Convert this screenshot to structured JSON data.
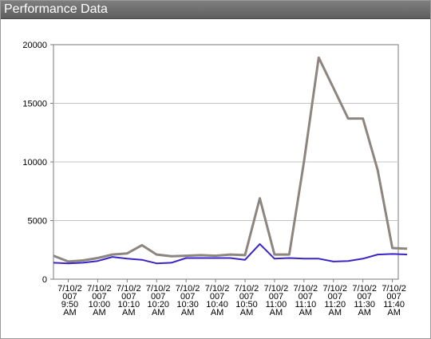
{
  "window": {
    "title": "Performance Data"
  },
  "chart_data": {
    "type": "line",
    "title": "",
    "xlabel": "",
    "ylabel": "",
    "ylim": [
      0,
      20000
    ],
    "yticks": [
      0,
      5000,
      10000,
      15000,
      20000
    ],
    "grid": true,
    "x_tick_labels": [
      [
        "7/10/2",
        "007",
        "9:50",
        "AM"
      ],
      [
        "7/10/2",
        "007",
        "10:00",
        "AM"
      ],
      [
        "7/10/2",
        "007",
        "10:10",
        "AM"
      ],
      [
        "7/10/2",
        "007",
        "10:20",
        "AM"
      ],
      [
        "7/10/2",
        "007",
        "10:30",
        "AM"
      ],
      [
        "7/10/2",
        "007",
        "10:40",
        "AM"
      ],
      [
        "7/10/2",
        "007",
        "10:50",
        "AM"
      ],
      [
        "7/10/2",
        "007",
        "11:00",
        "AM"
      ],
      [
        "7/10/2",
        "007",
        "11:10",
        "AM"
      ],
      [
        "7/10/2",
        "007",
        "11:20",
        "AM"
      ],
      [
        "7/10/2",
        "007",
        "11:30",
        "AM"
      ],
      [
        "7/10/2",
        "007",
        "11:40",
        "AM"
      ]
    ],
    "x_range": [
      "7/10/2007 9:45 AM",
      "7/10/2007 11:42 AM"
    ],
    "x_step_minutes": 5,
    "series": [
      {
        "color": "#8c8580",
        "values": [
          2000,
          1500,
          1600,
          1800,
          2100,
          2200,
          2900,
          2100,
          1950,
          2000,
          2050,
          2000,
          2100,
          2050,
          6900,
          2100,
          2100,
          10000,
          18900,
          16300,
          13700,
          13700,
          9300,
          2650,
          2600
        ]
      },
      {
        "color": "#3a24c8",
        "values": [
          1400,
          1350,
          1400,
          1550,
          1900,
          1750,
          1650,
          1350,
          1400,
          1800,
          1800,
          1800,
          1800,
          1650,
          3000,
          1750,
          1800,
          1750,
          1750,
          1500,
          1550,
          1750,
          2100,
          2150,
          2100
        ]
      }
    ]
  }
}
